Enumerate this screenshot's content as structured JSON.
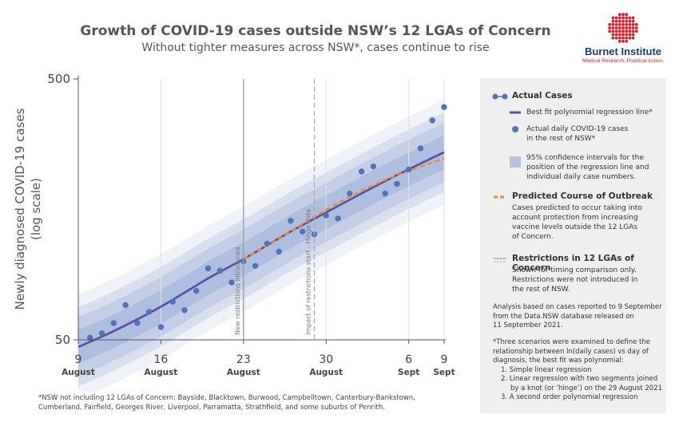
{
  "header": {
    "title": "Growth of COVID-19 cases outside NSW’s 12 LGAs of Concern",
    "subtitle": "Without tighter measures across NSW*, cases continue to rise"
  },
  "logo": {
    "name": "Burnet Institute",
    "tagline": "Medical Research. Practical Action."
  },
  "chart_data": {
    "type": "scatter",
    "y_scale": "log",
    "ylim": [
      50,
      500
    ],
    "ylabel": "Newly diagnosed COVID-19 cases (log scale)",
    "ylabel_lines": [
      "Newly diagnosed COVID-19 cases",
      "(log scale)"
    ],
    "y_ticks": [
      50,
      500
    ],
    "xlim": [
      "2021-08-09",
      "2021-09-09"
    ],
    "x_ticks": [
      {
        "date": "2021-08-09",
        "day": "9",
        "month": "August"
      },
      {
        "date": "2021-08-16",
        "day": "16",
        "month": "August"
      },
      {
        "date": "2021-08-23",
        "day": "23",
        "month": "August"
      },
      {
        "date": "2021-08-30",
        "day": "30",
        "month": "August"
      },
      {
        "date": "2021-09-06",
        "day": "6",
        "month": "Sept"
      },
      {
        "date": "2021-09-09",
        "day": "9",
        "month": "Sept"
      }
    ],
    "grid": "vertical",
    "series": [
      {
        "name": "Actual daily COVID-19 cases in the rest of NSW*",
        "color": "#4f74b8",
        "points": [
          [
            "2021-08-10",
            51
          ],
          [
            "2021-08-11",
            53
          ],
          [
            "2021-08-12",
            58
          ],
          [
            "2021-08-13",
            68
          ],
          [
            "2021-08-14",
            58
          ],
          [
            "2021-08-15",
            64
          ],
          [
            "2021-08-16",
            56
          ],
          [
            "2021-08-17",
            70
          ],
          [
            "2021-08-18",
            65
          ],
          [
            "2021-08-19",
            77
          ],
          [
            "2021-08-20",
            94
          ],
          [
            "2021-08-21",
            92
          ],
          [
            "2021-08-22",
            83
          ],
          [
            "2021-08-23",
            100
          ],
          [
            "2021-08-24",
            96
          ],
          [
            "2021-08-25",
            117
          ],
          [
            "2021-08-26",
            109
          ],
          [
            "2021-08-27",
            143
          ],
          [
            "2021-08-28",
            130
          ],
          [
            "2021-08-29",
            127
          ],
          [
            "2021-08-30",
            150
          ],
          [
            "2021-08-31",
            146
          ],
          [
            "2021-09-01",
            182
          ],
          [
            "2021-09-02",
            221
          ],
          [
            "2021-09-03",
            231
          ],
          [
            "2021-09-04",
            182
          ],
          [
            "2021-09-05",
            198
          ],
          [
            "2021-09-06",
            225
          ],
          [
            "2021-09-07",
            271
          ],
          [
            "2021-09-08",
            347
          ],
          [
            "2021-09-09",
            390
          ]
        ]
      },
      {
        "name": "Best fit polynomial regression line*",
        "color": "#5a4ea6",
        "points": [
          [
            "2021-08-09",
            47
          ],
          [
            "2021-08-12",
            54
          ],
          [
            "2021-08-16",
            67
          ],
          [
            "2021-08-20",
            86
          ],
          [
            "2021-08-23",
            102
          ],
          [
            "2021-08-27",
            130
          ],
          [
            "2021-08-30",
            154
          ],
          [
            "2021-09-02",
            182
          ],
          [
            "2021-09-05",
            214
          ],
          [
            "2021-09-09",
            262
          ]
        ]
      },
      {
        "name": "Predicted Course of Outbreak",
        "color": "#f28c28",
        "points": [
          [
            "2021-08-23",
            102
          ],
          [
            "2021-08-26",
            122
          ],
          [
            "2021-08-29",
            148
          ],
          [
            "2021-09-01",
            177
          ],
          [
            "2021-09-04",
            205
          ],
          [
            "2021-09-06",
            222
          ],
          [
            "2021-09-09",
            248
          ]
        ]
      }
    ],
    "confidence_bands": {
      "regression_ratio": 1.16,
      "individual_ratio": 1.42,
      "color": "#4f74b8"
    },
    "annotations": [
      {
        "date": "2021-08-23",
        "style": "solid",
        "label": "New restrictions introduced"
      },
      {
        "date": "2021-08-29",
        "style": "dashed",
        "label": "Impact of restrictions start - Hinge date"
      }
    ]
  },
  "legend": {
    "actual_header": "Actual Cases",
    "best_fit": "Best fit polynomial regression line*",
    "actual_daily": [
      "Actual daily COVID-19 cases",
      "in the rest of NSW*"
    ],
    "ci": [
      "95% confidence intervals for the",
      "position of the regression line and",
      "individual daily case numbers."
    ],
    "predicted_header": "Predicted Course of Outbreak",
    "predicted_text": [
      "Cases predicted to occur taking into",
      "account protection from increasing",
      "vaccine levels outside the 12 LGAs",
      "of Concern."
    ],
    "restrictions_header": "Restrictions in 12 LGAs of Concern",
    "restrictions_text": [
      "Shown for timing comparison only.",
      "Restrictions were not introduced in",
      "the rest of NSW."
    ],
    "analysis_note": [
      "Analysis based on cases reported to 9 September",
      "from the Data.NSW database released on",
      "11 September 2021."
    ],
    "scenarios_note": [
      "*Three scenarios were examined to define the",
      "relationship between ln(daily cases) vs day of",
      "diagnosis, the best fit was polynomial:"
    ],
    "scenarios": [
      "1. Simple linear regression",
      "2. Linear regression with two segments joined",
      "by a knot (or ‘hinge’) on the 29 August 2021",
      "3. A second order polynomial regression"
    ]
  },
  "footnote": [
    "*NSW not including 12 LGAs of Concern: Bayside, Blacktown, Burwood, Campbelltown, Canterbury-Bankstown,",
    "Cumberland, Fairfield, Georges River, Liverpool, Parramatta, Strathfield, and some suburbs of Penrith."
  ]
}
